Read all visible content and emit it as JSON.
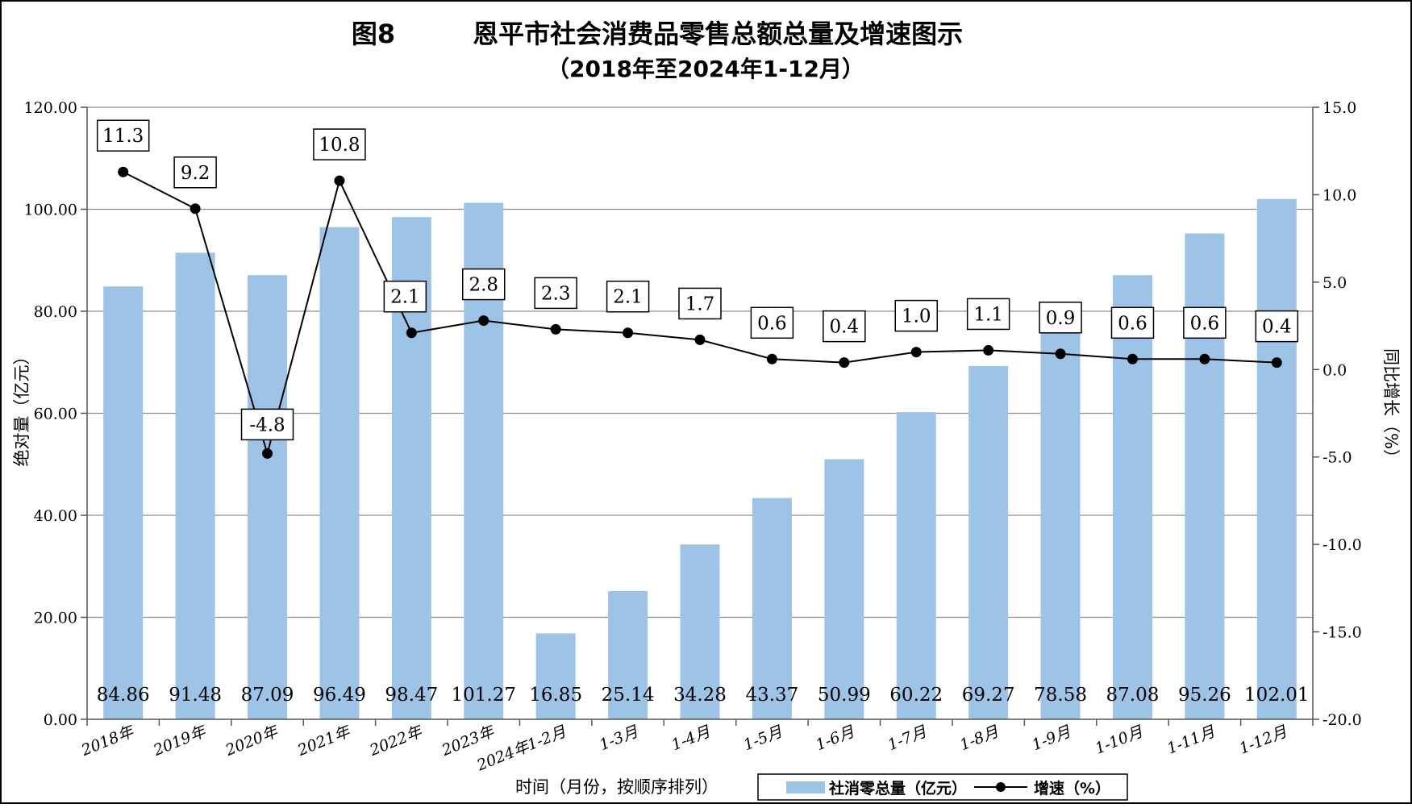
{
  "chart_data": {
    "type": "bar",
    "title": "图8　　　恩平市社会消费品零售总额总量及增速图示",
    "subtitle": "（2018年至2024年1-12月）",
    "xlabel": "时间（月份，按顺序排列）",
    "ylabel": "绝对量（亿元）",
    "y2label": "同比增长（%）",
    "categories": [
      "2018年",
      "2019年",
      "2020年",
      "2021年",
      "2022年",
      "2023年",
      "2024年1-2月",
      "1-3月",
      "1-4月",
      "1-5月",
      "1-6月",
      "1-7月",
      "1-8月",
      "1-9月",
      "1-10月",
      "1-11月",
      "1-12月"
    ],
    "series": [
      {
        "name": "社消零总量（亿元）",
        "type": "bar",
        "axis": "left",
        "color": "#9DC3E6",
        "values": [
          84.86,
          91.48,
          87.09,
          96.49,
          98.47,
          101.27,
          16.85,
          25.14,
          34.28,
          43.37,
          50.99,
          60.22,
          69.27,
          78.58,
          87.08,
          95.26,
          102.01
        ],
        "labels": [
          "84.86",
          "91.48",
          "87.09",
          "96.49",
          "98.47",
          "101.27",
          "16.85",
          "25.14",
          "34.28",
          "43.37",
          "50.99",
          "60.22",
          "69.27",
          "78.58",
          "87.08",
          "95.26",
          "102.01"
        ]
      },
      {
        "name": "增速（%）",
        "type": "line",
        "axis": "right",
        "color": "#000000",
        "values": [
          11.3,
          9.2,
          -4.8,
          10.8,
          2.1,
          2.8,
          2.3,
          2.1,
          1.7,
          0.6,
          0.4,
          1.0,
          1.1,
          0.9,
          0.6,
          0.6,
          0.4
        ],
        "labels": [
          "11.3",
          "9.2",
          "-4.8",
          "10.8",
          "2.1",
          "2.8",
          "2.3",
          "2.1",
          "1.7",
          "0.6",
          "0.4",
          "1.0",
          "1.1",
          "0.9",
          "0.6",
          "0.6",
          "0.4"
        ]
      }
    ],
    "ylim": [
      0,
      120
    ],
    "yticks": [
      0,
      20,
      40,
      60,
      80,
      100,
      120
    ],
    "ytick_labels": [
      "0.00",
      "20.00",
      "40.00",
      "60.00",
      "80.00",
      "100.00",
      "120.00"
    ],
    "y2lim": [
      -20,
      15
    ],
    "y2ticks": [
      -20,
      -15,
      -10,
      -5,
      0,
      5,
      10,
      15
    ],
    "y2tick_labels": [
      "-20.0",
      "-15.0",
      "-10.0",
      "-5.0",
      "0.0",
      "5.0",
      "10.0",
      "15.0"
    ],
    "grid": true,
    "legend_position": "bottom-right"
  }
}
